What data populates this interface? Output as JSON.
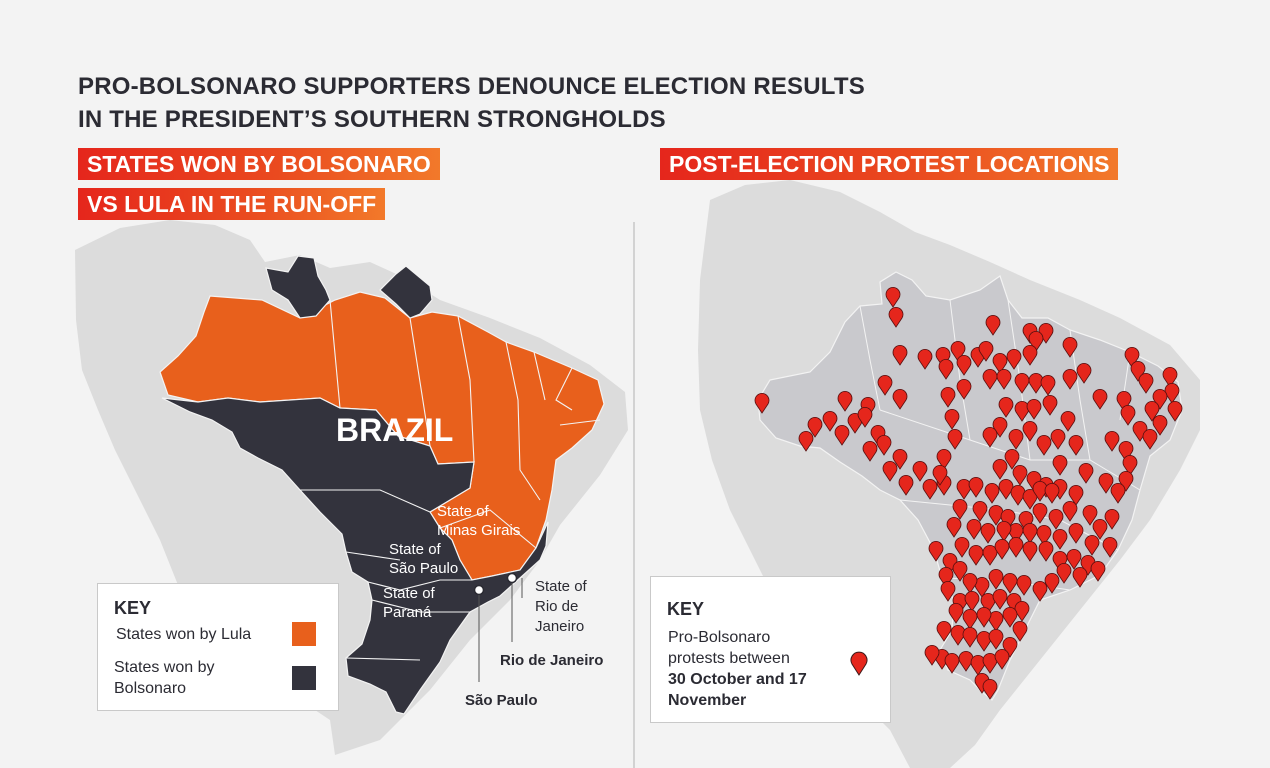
{
  "title": {
    "line1": "PRO-BOLSONARO SUPPORTERS DENOUNCE ELECTION RESULTS",
    "line2": "IN THE PRESIDENT’S SOUTHERN STRONGHOLDS"
  },
  "left_panel": {
    "tag_line1": "STATES WON BY BOLSONARO",
    "tag_line2": "VS LULA IN THE RUN-OFF",
    "country_label": "BRAZIL",
    "state_labels": {
      "minas_1": "State of",
      "minas_2": "Minas Girais",
      "sao_paulo_1": "State of",
      "sao_paulo_2": "São Paulo",
      "parana_1": "State of",
      "parana_2": "Paraná",
      "rio_1": "State of",
      "rio_2": "Rio de",
      "rio_3": "Janeiro"
    },
    "cities": {
      "rio": "Rio de Janeiro",
      "sao_paulo": "São Paulo"
    },
    "key": {
      "title": "KEY",
      "lula_label": "States won by Lula",
      "bolsonaro_label_1": "States won by",
      "bolsonaro_label_2": "Bolsonaro",
      "lula_color": "#e8601c",
      "bolsonaro_color": "#33333d"
    }
  },
  "right_panel": {
    "tag": "POST-ELECTION PROTEST LOCATIONS",
    "key": {
      "title": "KEY",
      "line1": "Pro-Bolsonaro",
      "line2": "protests between",
      "line3": "30 October and 17",
      "line4": "November",
      "marker_icon": "map-pin-icon",
      "marker_color": "#e5261c"
    }
  }
}
